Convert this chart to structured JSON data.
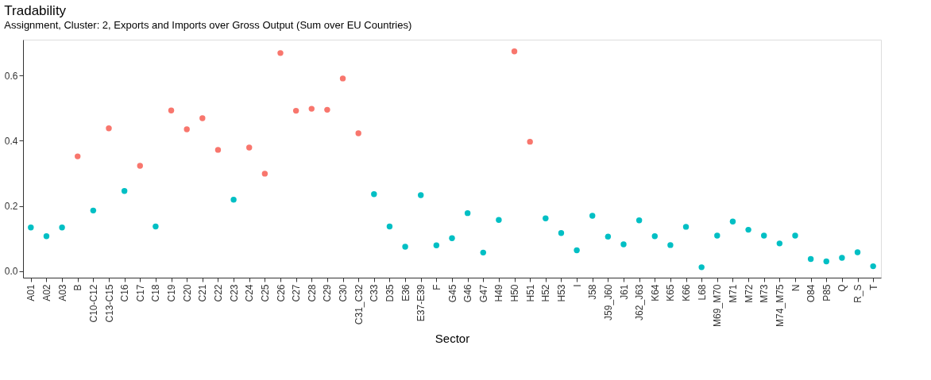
{
  "chart_data": {
    "type": "scatter",
    "title": "Tradability",
    "subtitle": "Assignment, Cluster: 2, Exports and Imports over Gross Output (Sum over EU Countries)",
    "xlabel": "Sector",
    "categories": [
      "A01",
      "A02",
      "A03",
      "B",
      "C10-C12",
      "C13-C15",
      "C16",
      "C17",
      "C18",
      "C19",
      "C20",
      "C21",
      "C22",
      "C23",
      "C24",
      "C25",
      "C26",
      "C27",
      "C28",
      "C29",
      "C30",
      "C31_C32",
      "C33",
      "D35",
      "E36",
      "E37-E39",
      "F",
      "G45",
      "G46",
      "G47",
      "H49",
      "H50",
      "H51",
      "H52",
      "H53",
      "I",
      "J58",
      "J59_J60",
      "J61",
      "J62_J63",
      "K64",
      "K65",
      "K66",
      "L68",
      "M69_M70",
      "M71",
      "M72",
      "M73",
      "M74_M75",
      "N",
      "O84",
      "P85",
      "Q",
      "R_S",
      "T"
    ],
    "series": [
      {
        "color": "#f8766d",
        "values": [
          null,
          null,
          null,
          0.352,
          null,
          0.438,
          null,
          0.323,
          null,
          0.493,
          0.435,
          0.469,
          0.372,
          null,
          0.379,
          0.299,
          0.669,
          0.492,
          0.498,
          0.495,
          0.591,
          0.423,
          null,
          null,
          null,
          null,
          null,
          null,
          null,
          null,
          null,
          0.674,
          0.397,
          null,
          null,
          null,
          null,
          null,
          null,
          null,
          null,
          null,
          null,
          null,
          null,
          null,
          null,
          null,
          null,
          null,
          null,
          null,
          null,
          null,
          null
        ]
      },
      {
        "color": "#00bfc4",
        "values": [
          0.134,
          0.107,
          0.134,
          null,
          0.186,
          null,
          0.246,
          null,
          0.137,
          null,
          null,
          null,
          null,
          0.219,
          null,
          null,
          null,
          null,
          null,
          null,
          null,
          null,
          0.236,
          0.137,
          0.075,
          0.233,
          0.079,
          0.101,
          0.178,
          0.057,
          0.157,
          null,
          null,
          0.162,
          0.117,
          0.064,
          0.17,
          0.106,
          0.082,
          0.156,
          0.107,
          0.08,
          0.136,
          0.012,
          0.109,
          0.152,
          0.127,
          0.109,
          0.085,
          0.109,
          0.037,
          0.03,
          0.041,
          0.058,
          0.015
        ]
      }
    ],
    "ylim": [
      -0.02,
      0.71
    ],
    "yticks": [
      {
        "value": 0,
        "label": "0.0"
      },
      {
        "value": 0.2,
        "label": "0.2"
      },
      {
        "value": 0.4,
        "label": "0.4"
      },
      {
        "value": 0.6,
        "label": "0.6"
      }
    ],
    "grid": false,
    "marker": "circle"
  }
}
